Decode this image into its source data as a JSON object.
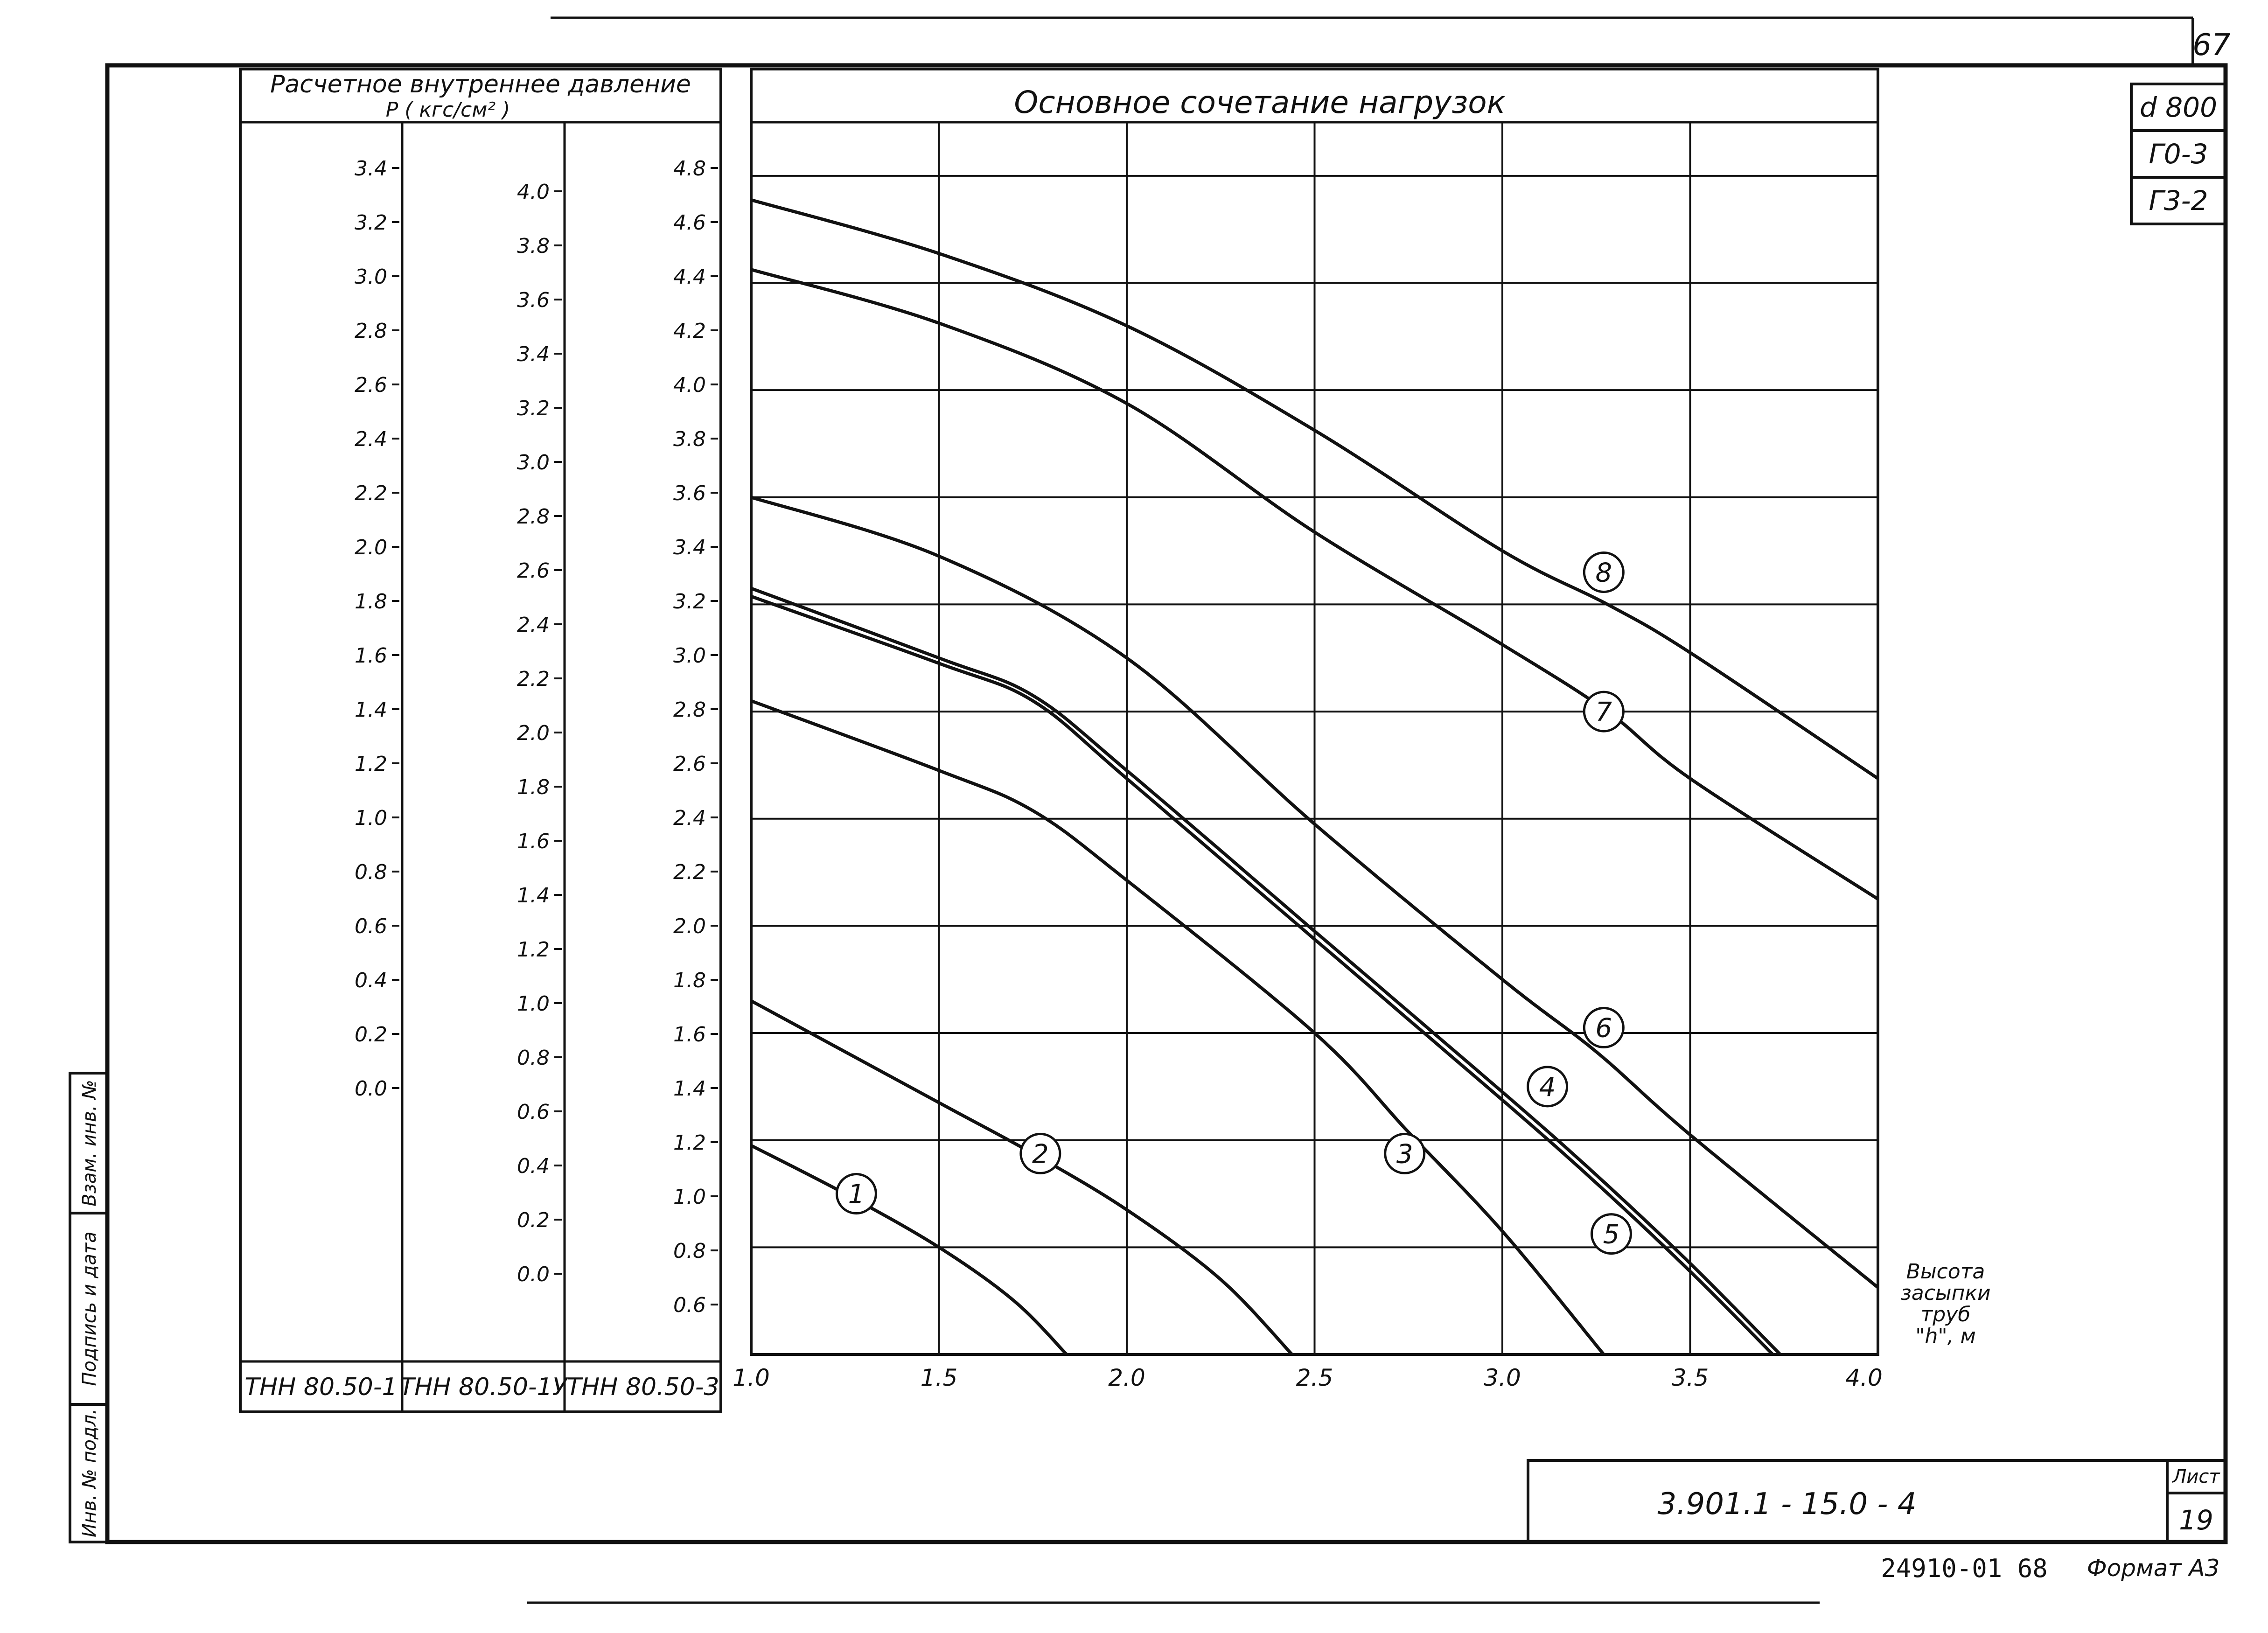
{
  "page_number": "67",
  "stamps": {
    "diameter": "d 800",
    "g0": "Г0-3",
    "g3": "Г3-2"
  },
  "scale_table": {
    "header": "Расчетное внутреннее давление",
    "header_symbol": "P ( кгс/см² )",
    "columns": [
      {
        "id": "col1",
        "label": "ТНН 80.50-1",
        "ticks": [
          "3.4",
          "3.2",
          "3.0",
          "2.8",
          "2.6",
          "2.4",
          "2.2",
          "2.0",
          "1.8",
          "1.6",
          "1.4",
          "1.2",
          "1.0",
          "0.8",
          "0.6",
          "0.4",
          "0.2",
          "0.0"
        ]
      },
      {
        "id": "col2",
        "label": "ТНН 80.50-1У",
        "ticks": [
          "4.0",
          "3.8",
          "3.6",
          "3.4",
          "3.2",
          "3.0",
          "2.8",
          "2.6",
          "2.4",
          "2.2",
          "2.0",
          "1.8",
          "1.6",
          "1.4",
          "1.2",
          "1.0",
          "0.8",
          "0.6",
          "0.4",
          "0.2",
          "0.0"
        ]
      },
      {
        "id": "col3",
        "label": "ТНН 80.50-3",
        "ticks": [
          "4.8",
          "4.6",
          "4.4",
          "4.2",
          "4.0",
          "3.8",
          "3.6",
          "3.4",
          "3.2",
          "3.0",
          "2.8",
          "2.6",
          "2.4",
          "2.2",
          "2.0",
          "1.8",
          "1.6",
          "1.4",
          "1.2",
          "1.0",
          "0.8",
          "0.6"
        ]
      }
    ]
  },
  "chart_data": {
    "type": "line",
    "title": "Основное сочетание нагрузок",
    "xlabel": "Высота засыпки труб \"h\", м",
    "ylabel": "",
    "xlim": [
      1.0,
      4.0
    ],
    "ylim": [
      0.4,
      5.0
    ],
    "x_ticks": [
      "1.0",
      "1.5",
      "2.0",
      "2.5",
      "3.0",
      "3.5",
      "4.0"
    ],
    "grid": true,
    "series": [
      {
        "name": "1",
        "points": [
          [
            1.0,
            1.18
          ],
          [
            1.25,
            1.0
          ],
          [
            1.5,
            0.8
          ],
          [
            1.7,
            0.6
          ],
          [
            1.84,
            0.4
          ]
        ]
      },
      {
        "name": "2",
        "points": [
          [
            1.0,
            1.72
          ],
          [
            1.5,
            1.34
          ],
          [
            1.75,
            1.15
          ],
          [
            2.0,
            0.94
          ],
          [
            2.25,
            0.68
          ],
          [
            2.44,
            0.4
          ]
        ]
      },
      {
        "name": "3",
        "points": [
          [
            1.0,
            2.84
          ],
          [
            1.5,
            2.58
          ],
          [
            1.75,
            2.43
          ],
          [
            2.0,
            2.17
          ],
          [
            2.5,
            1.6
          ],
          [
            2.75,
            1.23
          ],
          [
            3.0,
            0.86
          ],
          [
            3.27,
            0.4
          ]
        ]
      },
      {
        "name": "4",
        "points": [
          [
            1.0,
            3.26
          ],
          [
            1.5,
            3.0
          ],
          [
            1.75,
            2.86
          ],
          [
            2.0,
            2.58
          ],
          [
            2.5,
            1.98
          ],
          [
            3.0,
            1.38
          ],
          [
            3.25,
            1.07
          ],
          [
            3.5,
            0.74
          ],
          [
            3.74,
            0.4
          ]
        ]
      },
      {
        "name": "5",
        "points": [
          [
            1.0,
            3.23
          ],
          [
            1.5,
            2.98
          ],
          [
            1.75,
            2.84
          ],
          [
            2.0,
            2.55
          ],
          [
            2.5,
            1.95
          ],
          [
            3.0,
            1.35
          ],
          [
            3.25,
            1.04
          ],
          [
            3.5,
            0.71
          ],
          [
            3.72,
            0.4
          ]
        ]
      },
      {
        "name": "6",
        "points": [
          [
            1.0,
            3.6
          ],
          [
            1.5,
            3.38
          ],
          [
            2.0,
            3.0
          ],
          [
            2.5,
            2.38
          ],
          [
            3.0,
            1.8
          ],
          [
            3.25,
            1.53
          ],
          [
            3.5,
            1.22
          ],
          [
            4.0,
            0.65
          ]
        ]
      },
      {
        "name": "7",
        "points": [
          [
            1.0,
            4.45
          ],
          [
            1.5,
            4.25
          ],
          [
            2.0,
            3.95
          ],
          [
            2.5,
            3.47
          ],
          [
            3.0,
            3.05
          ],
          [
            3.28,
            2.8
          ],
          [
            3.5,
            2.55
          ],
          [
            4.0,
            2.1
          ]
        ]
      },
      {
        "name": "8",
        "points": [
          [
            1.0,
            4.71
          ],
          [
            1.5,
            4.51
          ],
          [
            2.0,
            4.24
          ],
          [
            2.5,
            3.85
          ],
          [
            3.0,
            3.4
          ],
          [
            3.28,
            3.2
          ],
          [
            3.5,
            3.02
          ],
          [
            4.0,
            2.55
          ]
        ]
      }
    ]
  },
  "curve_labels": [
    {
      "name": "1",
      "x": 1.28,
      "y": 1.0
    },
    {
      "name": "2",
      "x": 1.77,
      "y": 1.15
    },
    {
      "name": "3",
      "x": 2.74,
      "y": 1.15
    },
    {
      "name": "4",
      "x": 3.12,
      "y": 1.4
    },
    {
      "name": "5",
      "x": 3.29,
      "y": 0.85
    },
    {
      "name": "6",
      "x": 3.27,
      "y": 1.62
    },
    {
      "name": "7",
      "x": 3.27,
      "y": 2.8
    },
    {
      "name": "8",
      "x": 3.27,
      "y": 3.32
    }
  ],
  "side_stamp": {
    "inv_podl": "Инв. № подл.",
    "podpis": "Подпись и дата",
    "vzam": "Взам. инв. №"
  },
  "title_block": {
    "code": "3.901.1 - 15.0 - 4",
    "sheet_label": "Лист",
    "sheet_number": "19",
    "bottom_code": "24910-01 68",
    "format": "Формат А3"
  }
}
